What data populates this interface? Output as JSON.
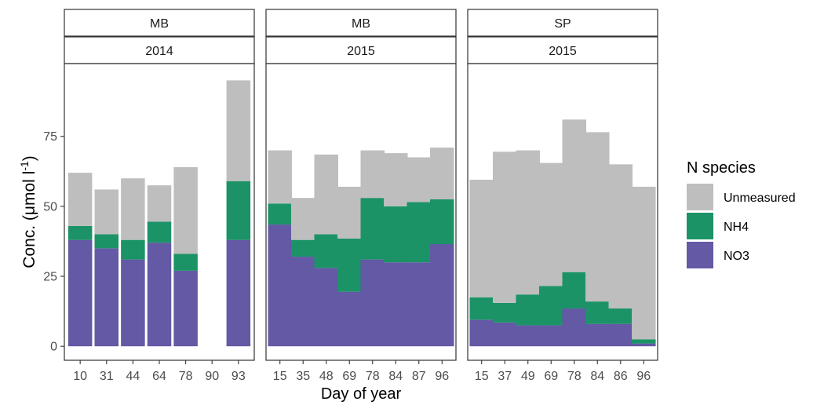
{
  "chart_data": {
    "type": "bar",
    "stacked": true,
    "faceted": true,
    "ylabel_main": "Conc. (μmol l",
    "ylabel_sup": "-1",
    "ylabel_close": ")",
    "xlabel": "Day of year",
    "ylim": [
      -5,
      101
    ],
    "yticks": [
      0,
      25,
      50,
      75
    ],
    "grid": false,
    "legend": {
      "title": "N species",
      "position": "right",
      "items": [
        {
          "key": "Unmeasured",
          "label": "Unmeasured",
          "color": "#BEBEBE"
        },
        {
          "key": "NH4",
          "label": "NH4",
          "color": "#1B9366"
        },
        {
          "key": "NO3",
          "label": "NO3",
          "color": "#6359A5"
        }
      ]
    },
    "stack_order": [
      "NO3",
      "NH4",
      "Unmeasured"
    ],
    "panels": [
      {
        "site": "MB",
        "year": "2014",
        "categories": [
          "10",
          "31",
          "44",
          "64",
          "78",
          "90",
          "93"
        ],
        "series": [
          {
            "name": "NO3",
            "values": [
              38,
              35,
              31,
              37,
              27,
              0,
              38
            ]
          },
          {
            "name": "NH4",
            "values": [
              5,
              5,
              7,
              7.5,
              6,
              0,
              21
            ]
          },
          {
            "name": "Unmeasured",
            "values": [
              19,
              16,
              22,
              13,
              31,
              0,
              36
            ]
          }
        ]
      },
      {
        "site": "MB",
        "year": "2015",
        "categories": [
          "15",
          "35",
          "48",
          "69",
          "78",
          "84",
          "87",
          "96"
        ],
        "series": [
          {
            "name": "NO3",
            "values": [
              43.5,
              32,
              28,
              19.5,
              31,
              30,
              30,
              36.5
            ]
          },
          {
            "name": "NH4",
            "values": [
              7.5,
              6,
              12,
              19,
              22,
              20,
              21.5,
              16
            ]
          },
          {
            "name": "Unmeasured",
            "values": [
              19,
              15,
              28.5,
              18.5,
              17,
              19,
              16,
              18.5
            ]
          }
        ]
      },
      {
        "site": "SP",
        "year": "2015",
        "categories": [
          "15",
          "37",
          "49",
          "69",
          "78",
          "84",
          "86",
          "96"
        ],
        "series": [
          {
            "name": "NO3",
            "values": [
              9.5,
              8.5,
              7.5,
              7.5,
              13.5,
              8,
              8,
              1
            ]
          },
          {
            "name": "NH4",
            "values": [
              8,
              7,
              11,
              14,
              13,
              8,
              5.5,
              1.5
            ]
          },
          {
            "name": "Unmeasured",
            "values": [
              42,
              54,
              51.5,
              44,
              54.5,
              60.5,
              51.5,
              54.5
            ]
          }
        ]
      }
    ]
  }
}
